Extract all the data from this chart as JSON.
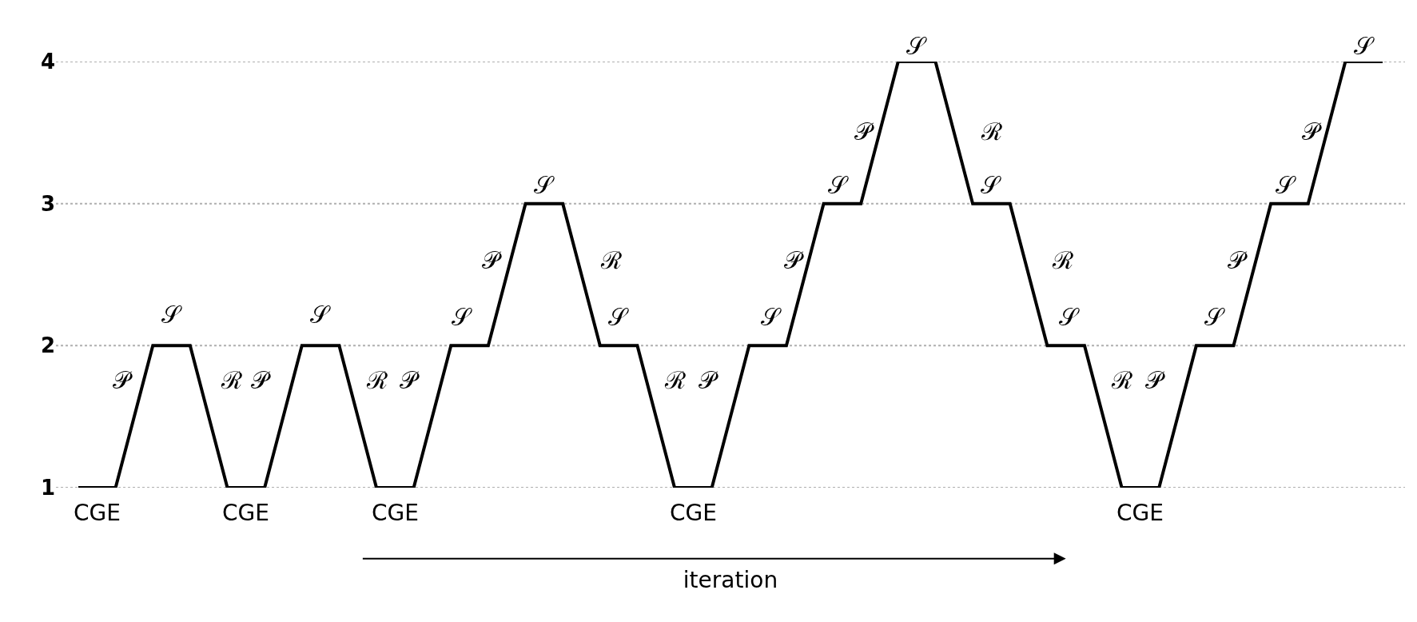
{
  "chart_data": {
    "type": "line",
    "categories": [
      null,
      null,
      null,
      null,
      null,
      null,
      null,
      null,
      null,
      null,
      null,
      null,
      null,
      null,
      null,
      null,
      null,
      null,
      null,
      null,
      null,
      null,
      null,
      null,
      null,
      null,
      null,
      null,
      null,
      null,
      null,
      null,
      null,
      null,
      null,
      null
    ],
    "series": [
      {
        "color": "#000000",
        "values": [
          1,
          1,
          2,
          2,
          1,
          1,
          2,
          2,
          1,
          1,
          2,
          2,
          3,
          3,
          2,
          2,
          1,
          1,
          2,
          2,
          3,
          3,
          4,
          4,
          3,
          3,
          2,
          2,
          1,
          1,
          2,
          2,
          3,
          3,
          4,
          4
        ]
      }
    ],
    "ylim": [
      1,
      4
    ],
    "yticks": [
      1,
      2,
      3,
      4
    ],
    "grid": "y",
    "marker": "none",
    "line_style": "solid",
    "tick_labels": "y",
    "xlabel": "iteration",
    "annotations": [
      "𝒫",
      "𝒮",
      "ℛ",
      "𝒫",
      "𝒮",
      "ℛ",
      "𝒫",
      "𝒮",
      "𝒫",
      "𝒮",
      "ℛ",
      "𝒮",
      "ℛ",
      "𝒫",
      "𝒮",
      "𝒫",
      "𝒮",
      "𝒫",
      "𝒮",
      "ℛ",
      "𝒮",
      "ℛ",
      "𝒮",
      "ℛ",
      "𝒫",
      "𝒮",
      "𝒫",
      "𝒮",
      "𝒫",
      "𝒮",
      "CGE",
      "CGE",
      "CGE",
      "CGE",
      "CGE"
    ]
  }
}
